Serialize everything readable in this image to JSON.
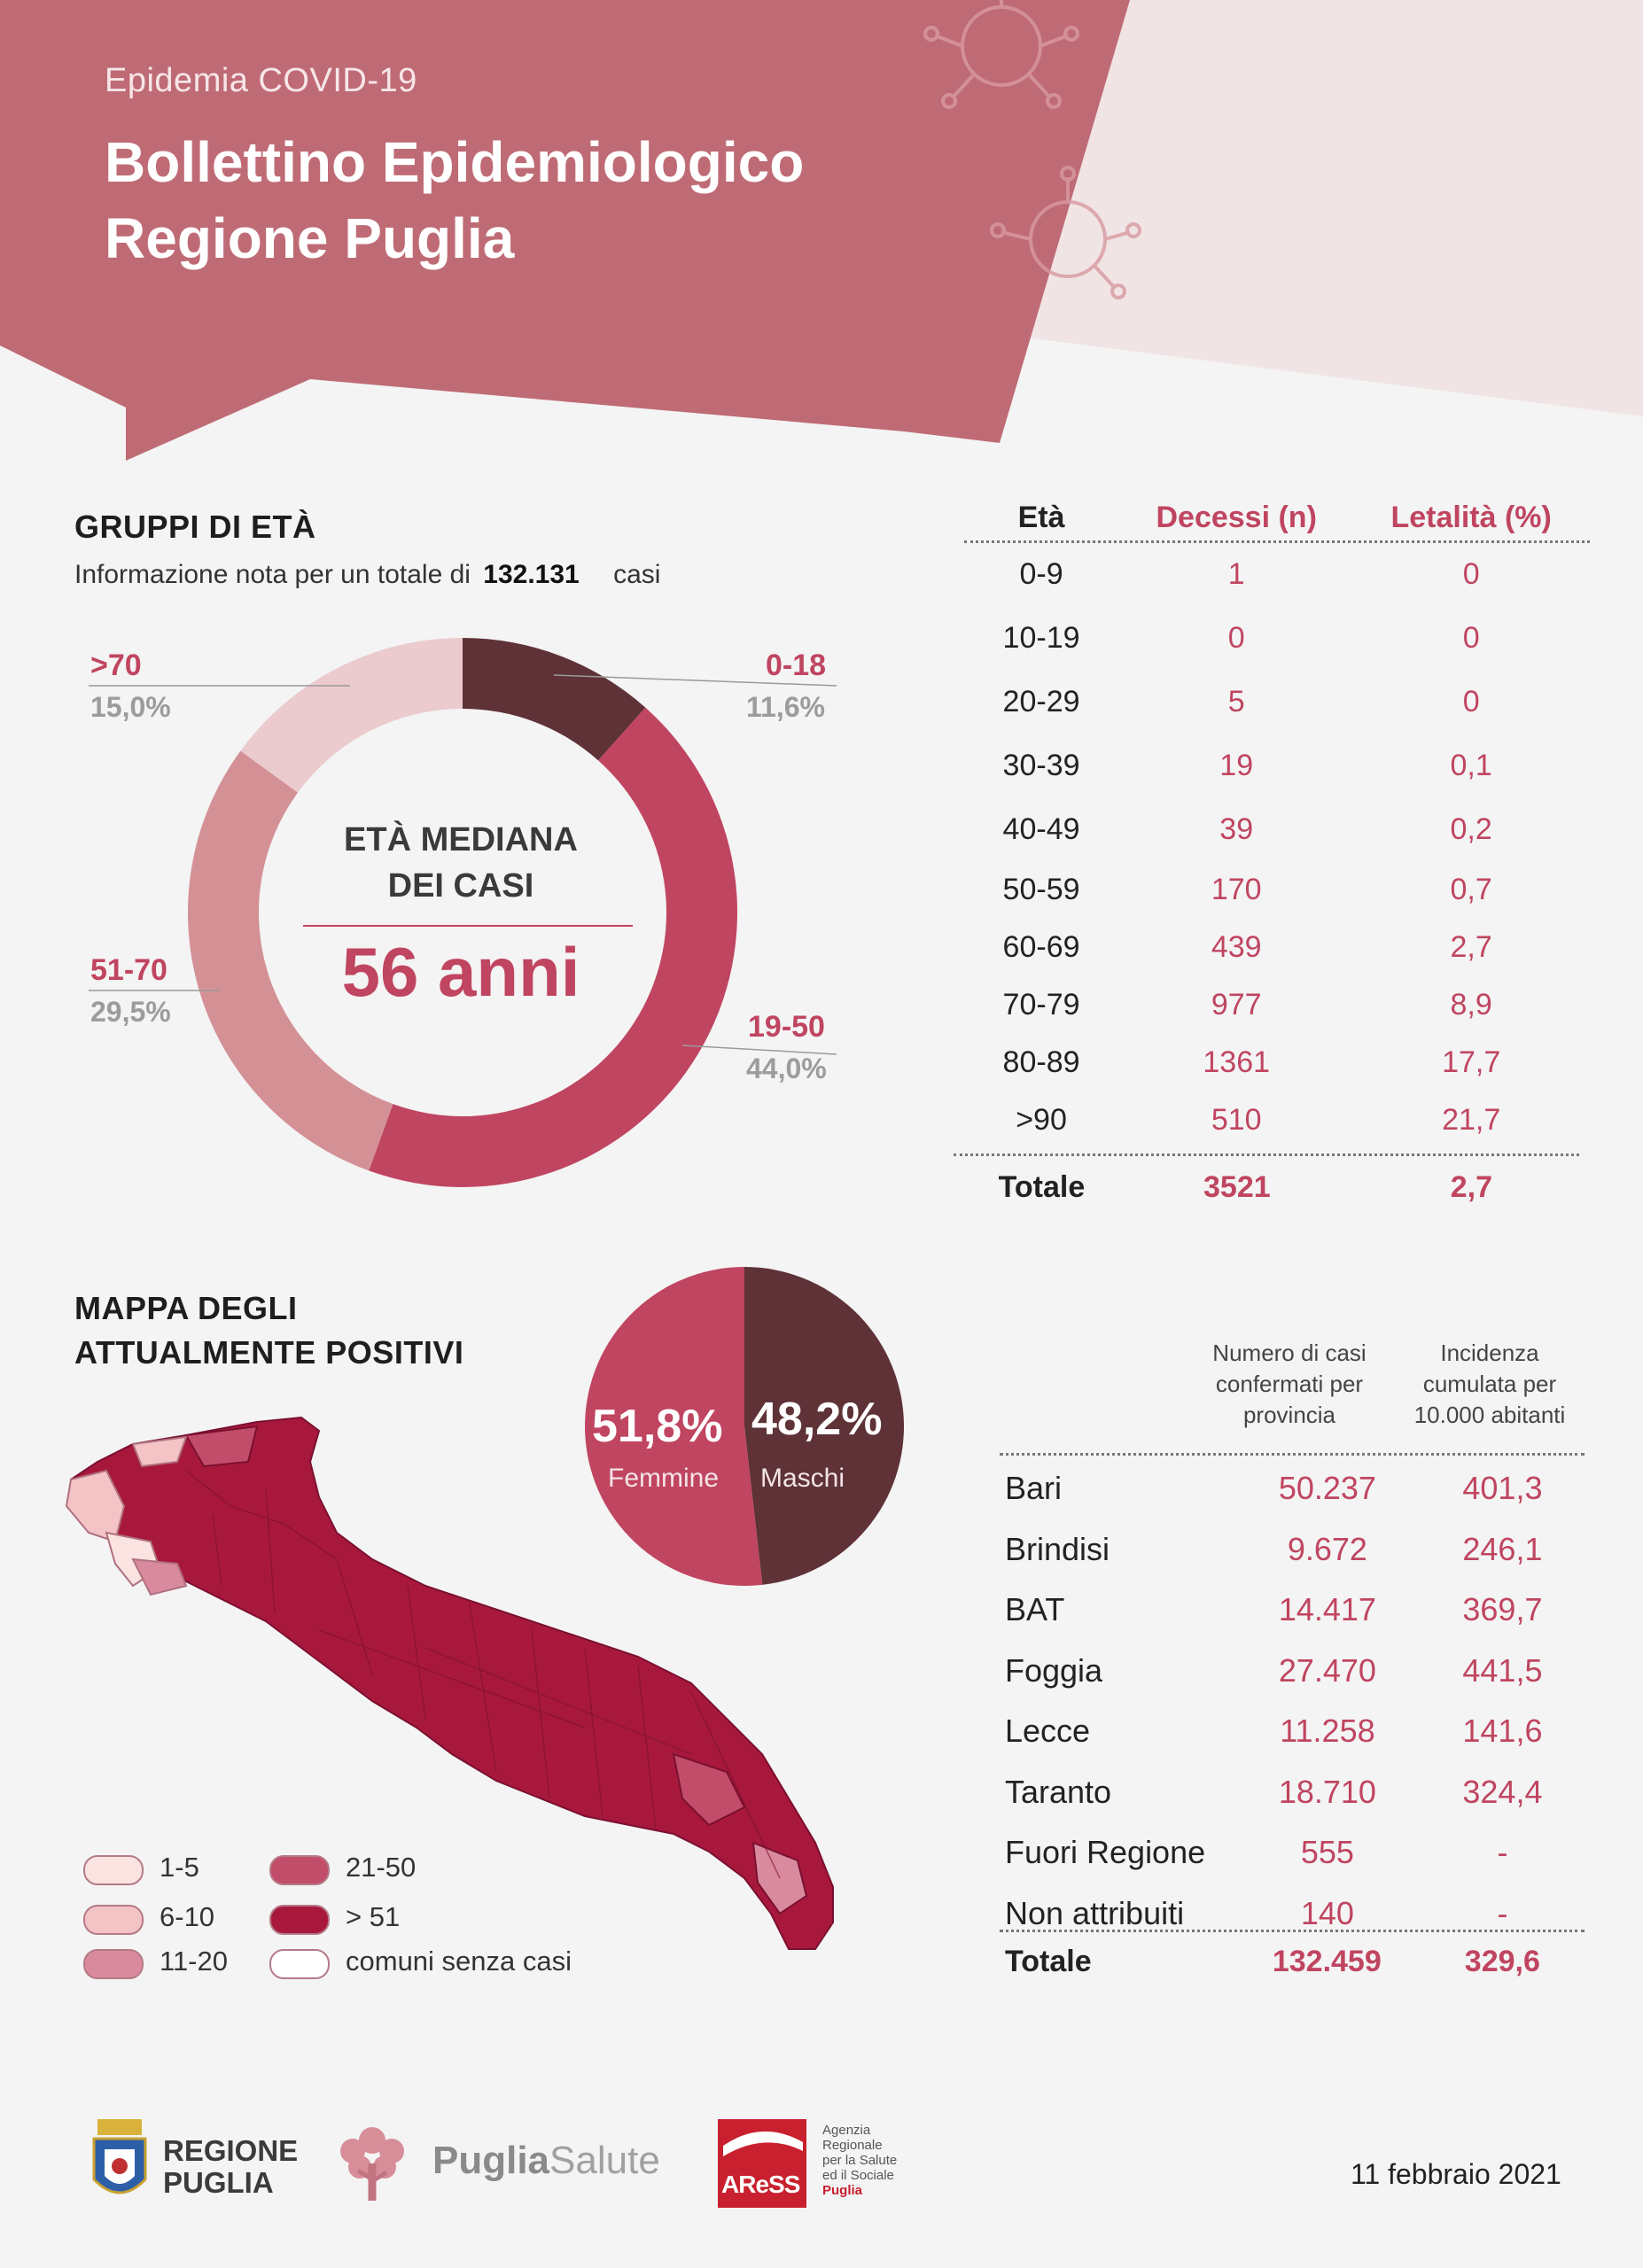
{
  "header": {
    "kicker": "Epidemia COVID-19",
    "title_line1": "Bollettino Epidemiologico",
    "title_line2": "Regione Puglia"
  },
  "age_section": {
    "title": "GRUPPI DI ETÀ",
    "note_prefix": "Informazione nota per un totale di",
    "note_value": "132.131",
    "note_suffix": "casi",
    "center_title_line1": "ETÀ MEDIANA",
    "center_title_line2": "DEI CASI",
    "center_value": "56 anni"
  },
  "deaths_table": {
    "headers": [
      "Età",
      "Decessi (n)",
      "Letalità (%)"
    ],
    "rows": [
      [
        "0-9",
        "1",
        "0"
      ],
      [
        "10-19",
        "0",
        "0"
      ],
      [
        "20-29",
        "5",
        "0"
      ],
      [
        "30-39",
        "19",
        "0,1"
      ],
      [
        "40-49",
        "39",
        "0,2"
      ],
      [
        "50-59",
        "170",
        "0,7"
      ],
      [
        "60-69",
        "439",
        "2,7"
      ],
      [
        "70-79",
        "977",
        "8,9"
      ],
      [
        "80-89",
        "1361",
        "17,7"
      ],
      [
        ">90",
        "510",
        "21,7"
      ]
    ],
    "total": [
      "Totale",
      "3521",
      "2,7"
    ]
  },
  "map_section": {
    "title_line1": "MAPPA DEGLI",
    "title_line2": "ATTUALMENTE POSITIVI",
    "legend": [
      {
        "label": "1-5",
        "color": "#fae3e0"
      },
      {
        "label": "6-10",
        "color": "#f4c3c5"
      },
      {
        "label": "11-20",
        "color": "#d98a9e"
      },
      {
        "label": "21-50",
        "color": "#c24d6a"
      },
      {
        "label": "> 51",
        "color": "#a8183d"
      },
      {
        "label": "comuni senza casi",
        "color": "#ffffff"
      }
    ]
  },
  "province_table": {
    "headers": [
      "Numero di casi confermati per provincia",
      "Incidenza cumulata per 10.000 abitanti"
    ],
    "rows": [
      [
        "Bari",
        "50.237",
        "401,3"
      ],
      [
        "Brindisi",
        "9.672",
        "246,1"
      ],
      [
        "BAT",
        "14.417",
        "369,7"
      ],
      [
        "Foggia",
        "27.470",
        "441,5"
      ],
      [
        "Lecce",
        "11.258",
        "141,6"
      ],
      [
        "Taranto",
        "18.710",
        "324,4"
      ],
      [
        "Fuori Regione",
        "555",
        "-"
      ],
      [
        "Non attribuiti",
        "140",
        "-"
      ]
    ],
    "total": [
      "Totale",
      "132.459",
      "329,6"
    ]
  },
  "footer": {
    "logo1_line1": "REGIONE",
    "logo1_line2": "PUGLIA",
    "logo2_bold": "Puglia",
    "logo2_light": "Salute",
    "logo3_text": "AReSS",
    "logo3_caption": [
      "Agenzia",
      "Regionale",
      "per la Salute",
      "ed il Sociale",
      "Puglia"
    ],
    "date": "11 febbraio 2021"
  },
  "colors": {
    "primary": "#c04560",
    "dark": "#5e3237",
    "banner": "#bf6b75",
    "light": "#f1e4e4"
  },
  "chart_data": [
    {
      "type": "pie",
      "variant": "donut",
      "categories": [
        "0-18",
        "19-50",
        "51-70",
        ">70"
      ],
      "values": [
        11.6,
        44.0,
        29.5,
        15.0
      ],
      "value_labels": [
        "11,6%",
        "44,0%",
        "29,5%",
        "15,0%"
      ],
      "colors": [
        "#5e3237",
        "#c04560",
        "#d39196",
        "#ebcbce"
      ]
    },
    {
      "type": "pie",
      "categories": [
        "Femmine",
        "Maschi"
      ],
      "values": [
        51.8,
        48.2
      ],
      "value_labels": [
        "51,8%",
        "48,2%"
      ],
      "colors": [
        "#c04560",
        "#5e3237"
      ]
    }
  ]
}
